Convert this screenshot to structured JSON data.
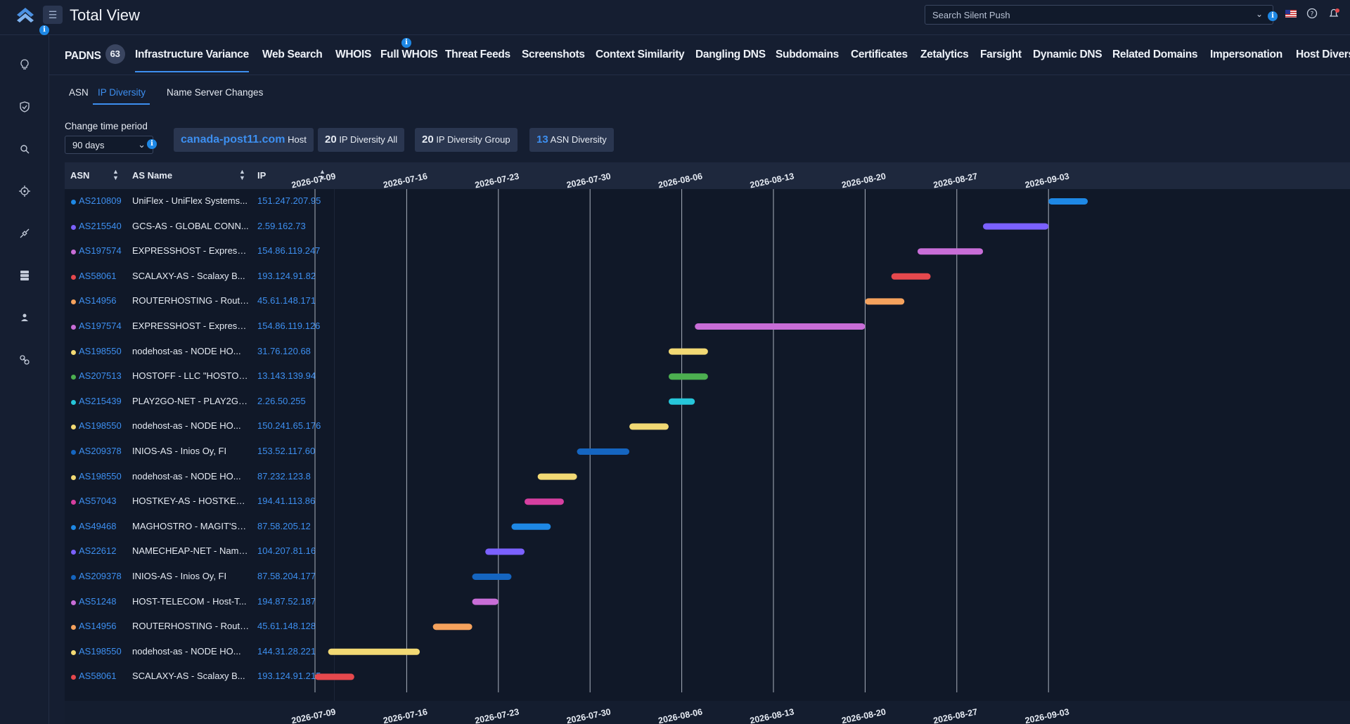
{
  "header": {
    "title": "Total View",
    "search_placeholder": "Search Silent Push",
    "info_glyph": "i"
  },
  "icons": {
    "logo": "chevron-up-logo-icon",
    "menu": "menu-icon",
    "flag": "us-flag-icon",
    "help": "help-icon",
    "alert": "bell-alert-icon",
    "sidebar": [
      "lightbulb-icon",
      "shield-check-icon",
      "search-icon",
      "crosshair-icon",
      "satellite-icon",
      "database-icon",
      "user-shield-icon",
      "link-icon"
    ]
  },
  "tabs": [
    {
      "label": "PADNS",
      "badge": "63"
    },
    {
      "label": "Infrastructure Variance"
    },
    {
      "label": "Web Search"
    },
    {
      "label": "WHOIS"
    },
    {
      "label": "Full WHOIS"
    },
    {
      "label": "Threat Feeds"
    },
    {
      "label": "Screenshots"
    },
    {
      "label": "Context Similarity"
    },
    {
      "label": "Dangling DNS"
    },
    {
      "label": "Subdomains"
    },
    {
      "label": "Certificates"
    },
    {
      "label": "Zetalytics"
    },
    {
      "label": "Farsight"
    },
    {
      "label": "Dynamic DNS"
    },
    {
      "label": "Related Domains"
    },
    {
      "label": "Impersonation"
    },
    {
      "label": "Host Divers"
    }
  ],
  "subtabs": [
    "ASN",
    "IP Diversity",
    "Name Server Changes"
  ],
  "period": {
    "label": "Change time period",
    "value": "90 days"
  },
  "chips": {
    "host": "canada-post11.com",
    "host_suffix": "Host",
    "ip_div_all_num": "20",
    "ip_div_all_label": "IP Diversity All",
    "ip_div_group_num": "20",
    "ip_div_group_label": "IP Diversity Group",
    "asn_div_num": "13",
    "asn_div_label": "ASN Diversity"
  },
  "columns": [
    "ASN",
    "AS Name",
    "IP"
  ],
  "colors": {
    "accent": "#3d8ff0",
    "background": "#151e31",
    "panel": "#101828"
  },
  "chart_data": {
    "type": "gantt",
    "x_axis_ticks": [
      "2026-07-09",
      "2026-07-16",
      "2026-07-23",
      "2026-07-30",
      "2026-08-06",
      "2026-08-13",
      "2026-08-20",
      "2026-08-27",
      "2026-09-03"
    ],
    "rows": [
      {
        "asn": "AS210809",
        "as_name": "UniFlex - UniFlex Systems...",
        "ip": "151.247.207.95",
        "color": "#1e88e5",
        "start": "2026-09-03",
        "end": "2026-09-06"
      },
      {
        "asn": "AS215540",
        "as_name": "GCS-AS - GLOBAL CONN...",
        "ip": "2.59.162.73",
        "color": "#7b61ff",
        "start": "2026-08-29",
        "end": "2026-09-03"
      },
      {
        "asn": "AS197574",
        "as_name": "EXPRESSHOST - ExpressH...",
        "ip": "154.86.119.247",
        "color": "#c86dd7",
        "start": "2026-08-24",
        "end": "2026-08-29"
      },
      {
        "asn": "AS58061",
        "as_name": "SCALAXY-AS - Scalaxy B...",
        "ip": "193.124.91.82",
        "color": "#e5484d",
        "start": "2026-08-22",
        "end": "2026-08-25"
      },
      {
        "asn": "AS14956",
        "as_name": "ROUTERHOSTING - Router...",
        "ip": "45.61.148.171",
        "color": "#f5a25d",
        "start": "2026-08-20",
        "end": "2026-08-23"
      },
      {
        "asn": "AS197574",
        "as_name": "EXPRESSHOST - ExpressH...",
        "ip": "154.86.119.126",
        "color": "#c86dd7",
        "start": "2026-08-07",
        "end": "2026-08-20"
      },
      {
        "asn": "AS198550",
        "as_name": "nodehost-as - NODE HO...",
        "ip": "31.76.120.68",
        "color": "#f2d974",
        "start": "2026-08-05",
        "end": "2026-08-08"
      },
      {
        "asn": "AS207513",
        "as_name": "HOSTOFF - LLC \"HOSTOFF ...",
        "ip": "13.143.139.94",
        "color": "#4caf50",
        "start": "2026-08-05",
        "end": "2026-08-08"
      },
      {
        "asn": "AS215439",
        "as_name": "PLAY2GO-NET - PLAY2GO...",
        "ip": "2.26.50.255",
        "color": "#26c6da",
        "start": "2026-08-05",
        "end": "2026-08-07"
      },
      {
        "asn": "AS198550",
        "as_name": "nodehost-as - NODE HO...",
        "ip": "150.241.65.176",
        "color": "#f2d974",
        "start": "2026-08-02",
        "end": "2026-08-05"
      },
      {
        "asn": "AS209378",
        "as_name": "INIOS-AS - Inios Oy, FI",
        "ip": "153.52.117.60",
        "color": "#1565c0",
        "start": "2026-07-29",
        "end": "2026-08-02"
      },
      {
        "asn": "AS198550",
        "as_name": "nodehost-as - NODE HO...",
        "ip": "87.232.123.8",
        "color": "#f2d974",
        "start": "2026-07-26",
        "end": "2026-07-29"
      },
      {
        "asn": "AS57043",
        "as_name": "HOSTKEY-AS - HOSTKEY B...",
        "ip": "194.41.113.86",
        "color": "#d63fa0",
        "start": "2026-07-25",
        "end": "2026-07-28"
      },
      {
        "asn": "AS49468",
        "as_name": "MAGHOSTRO - MAGIT'ST ...",
        "ip": "87.58.205.12",
        "color": "#1e88e5",
        "start": "2026-07-24",
        "end": "2026-07-27"
      },
      {
        "asn": "AS22612",
        "as_name": "NAMECHEAP-NET - Name...",
        "ip": "104.207.81.16",
        "color": "#7b61ff",
        "start": "2026-07-22",
        "end": "2026-07-25"
      },
      {
        "asn": "AS209378",
        "as_name": "INIOS-AS - Inios Oy, FI",
        "ip": "87.58.204.177",
        "color": "#1565c0",
        "start": "2026-07-21",
        "end": "2026-07-24"
      },
      {
        "asn": "AS51248",
        "as_name": "HOST-TELECOM - Host-T...",
        "ip": "194.87.52.187",
        "color": "#c86dd7",
        "start": "2026-07-21",
        "end": "2026-07-23"
      },
      {
        "asn": "AS14956",
        "as_name": "ROUTERHOSTING - Router...",
        "ip": "45.61.148.128",
        "color": "#f5a25d",
        "start": "2026-07-18",
        "end": "2026-07-21"
      },
      {
        "asn": "AS198550",
        "as_name": "nodehost-as - NODE HO...",
        "ip": "144.31.28.221",
        "color": "#f2d974",
        "start": "2026-07-10",
        "end": "2026-07-17"
      },
      {
        "asn": "AS58061",
        "as_name": "SCALAXY-AS - Scalaxy B...",
        "ip": "193.124.91.215",
        "color": "#e5484d",
        "start": "2026-07-09",
        "end": "2026-07-12"
      }
    ]
  }
}
